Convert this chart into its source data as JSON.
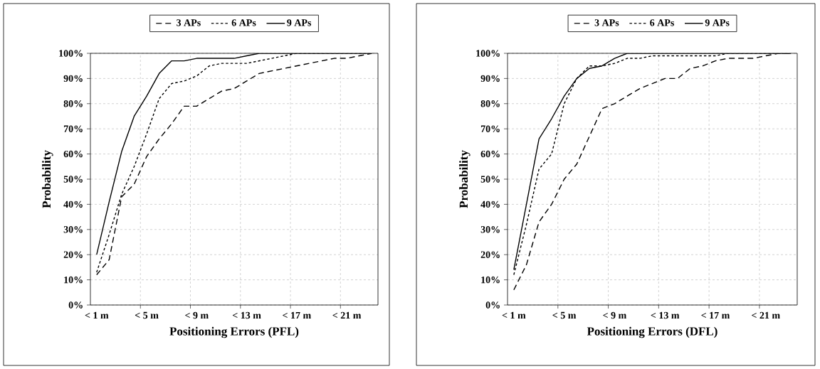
{
  "chart_data": [
    {
      "type": "line",
      "xlabel": "Positioning Errors (PFL)",
      "ylabel": "Probability",
      "categories": [
        "< 1 m",
        null,
        null,
        null,
        "< 5 m",
        null,
        null,
        null,
        "< 9 m",
        null,
        null,
        null,
        "< 13 m",
        null,
        null,
        null,
        "< 17 m",
        null,
        null,
        null,
        "< 21 m",
        null,
        null
      ],
      "series": [
        {
          "name": "3 APs",
          "color": "#000000",
          "line_style": "dashed",
          "values": [
            12,
            18,
            43,
            48,
            59,
            66,
            72,
            79,
            79,
            82,
            85,
            86,
            89,
            92,
            93,
            94,
            95,
            96,
            97,
            98,
            98,
            99,
            100
          ]
        },
        {
          "name": "6 APs",
          "color": "#000000",
          "line_style": "dotted",
          "values": [
            13,
            28,
            44,
            55,
            68,
            82,
            88,
            89,
            91,
            95,
            96,
            96,
            96,
            97,
            98,
            99,
            100,
            100,
            100,
            100,
            100,
            100,
            100
          ]
        },
        {
          "name": "9 APs",
          "color": "#000000",
          "line_style": "solid",
          "values": [
            20,
            41,
            61,
            75,
            83,
            92,
            97,
            97,
            98,
            98,
            98,
            98,
            99,
            100,
            100,
            100,
            100,
            100,
            100,
            100,
            100,
            100,
            100
          ]
        }
      ],
      "ylim": [
        0,
        100
      ],
      "yticks": [
        {
          "value": 0,
          "label": "0%"
        },
        {
          "value": 10,
          "label": "10%"
        },
        {
          "value": 20,
          "label": "20%"
        },
        {
          "value": 30,
          "label": "30%"
        },
        {
          "value": 40,
          "label": "40%"
        },
        {
          "value": 50,
          "label": "50%"
        },
        {
          "value": 60,
          "label": "60%"
        },
        {
          "value": 70,
          "label": "70%"
        },
        {
          "value": 80,
          "label": "80%"
        },
        {
          "value": 90,
          "label": "90%"
        },
        {
          "value": 100,
          "label": "100%"
        }
      ],
      "grid": true,
      "legend": "top"
    },
    {
      "type": "line",
      "xlabel": "Positioning Errors (DFL)",
      "ylabel": "Probability",
      "categories": [
        "< 1 m",
        null,
        null,
        null,
        "< 5 m",
        null,
        null,
        null,
        "< 9 m",
        null,
        null,
        null,
        "< 13 m",
        null,
        null,
        null,
        "< 17 m",
        null,
        null,
        null,
        "< 21 m",
        null,
        null
      ],
      "series": [
        {
          "name": "3 APs",
          "color": "#000000",
          "line_style": "dashed",
          "values": [
            6,
            16,
            33,
            40,
            50,
            56,
            67,
            78,
            80,
            83,
            86,
            88,
            90,
            90,
            94,
            95,
            97,
            98,
            98,
            98,
            99,
            100,
            100
          ]
        },
        {
          "name": "6 APs",
          "color": "#000000",
          "line_style": "dotted",
          "values": [
            12,
            32,
            54,
            60,
            80,
            90,
            95,
            95,
            96,
            98,
            98,
            99,
            99,
            99,
            99,
            99,
            99,
            100,
            100,
            100,
            100,
            100,
            100
          ]
        },
        {
          "name": "9 APs",
          "color": "#000000",
          "line_style": "solid",
          "values": [
            14,
            40,
            66,
            74,
            83,
            90,
            94,
            95,
            98,
            100,
            100,
            100,
            100,
            100,
            100,
            100,
            100,
            100,
            100,
            100,
            100,
            100,
            100
          ]
        }
      ],
      "ylim": [
        0,
        100
      ],
      "yticks": [
        {
          "value": 0,
          "label": "0%"
        },
        {
          "value": 10,
          "label": "10%"
        },
        {
          "value": 20,
          "label": "20%"
        },
        {
          "value": 30,
          "label": "30%"
        },
        {
          "value": 40,
          "label": "40%"
        },
        {
          "value": 50,
          "label": "50%"
        },
        {
          "value": 60,
          "label": "60%"
        },
        {
          "value": 70,
          "label": "70%"
        },
        {
          "value": 80,
          "label": "80%"
        },
        {
          "value": 90,
          "label": "90%"
        },
        {
          "value": 100,
          "label": "100%"
        }
      ],
      "grid": true,
      "legend": "top"
    }
  ]
}
